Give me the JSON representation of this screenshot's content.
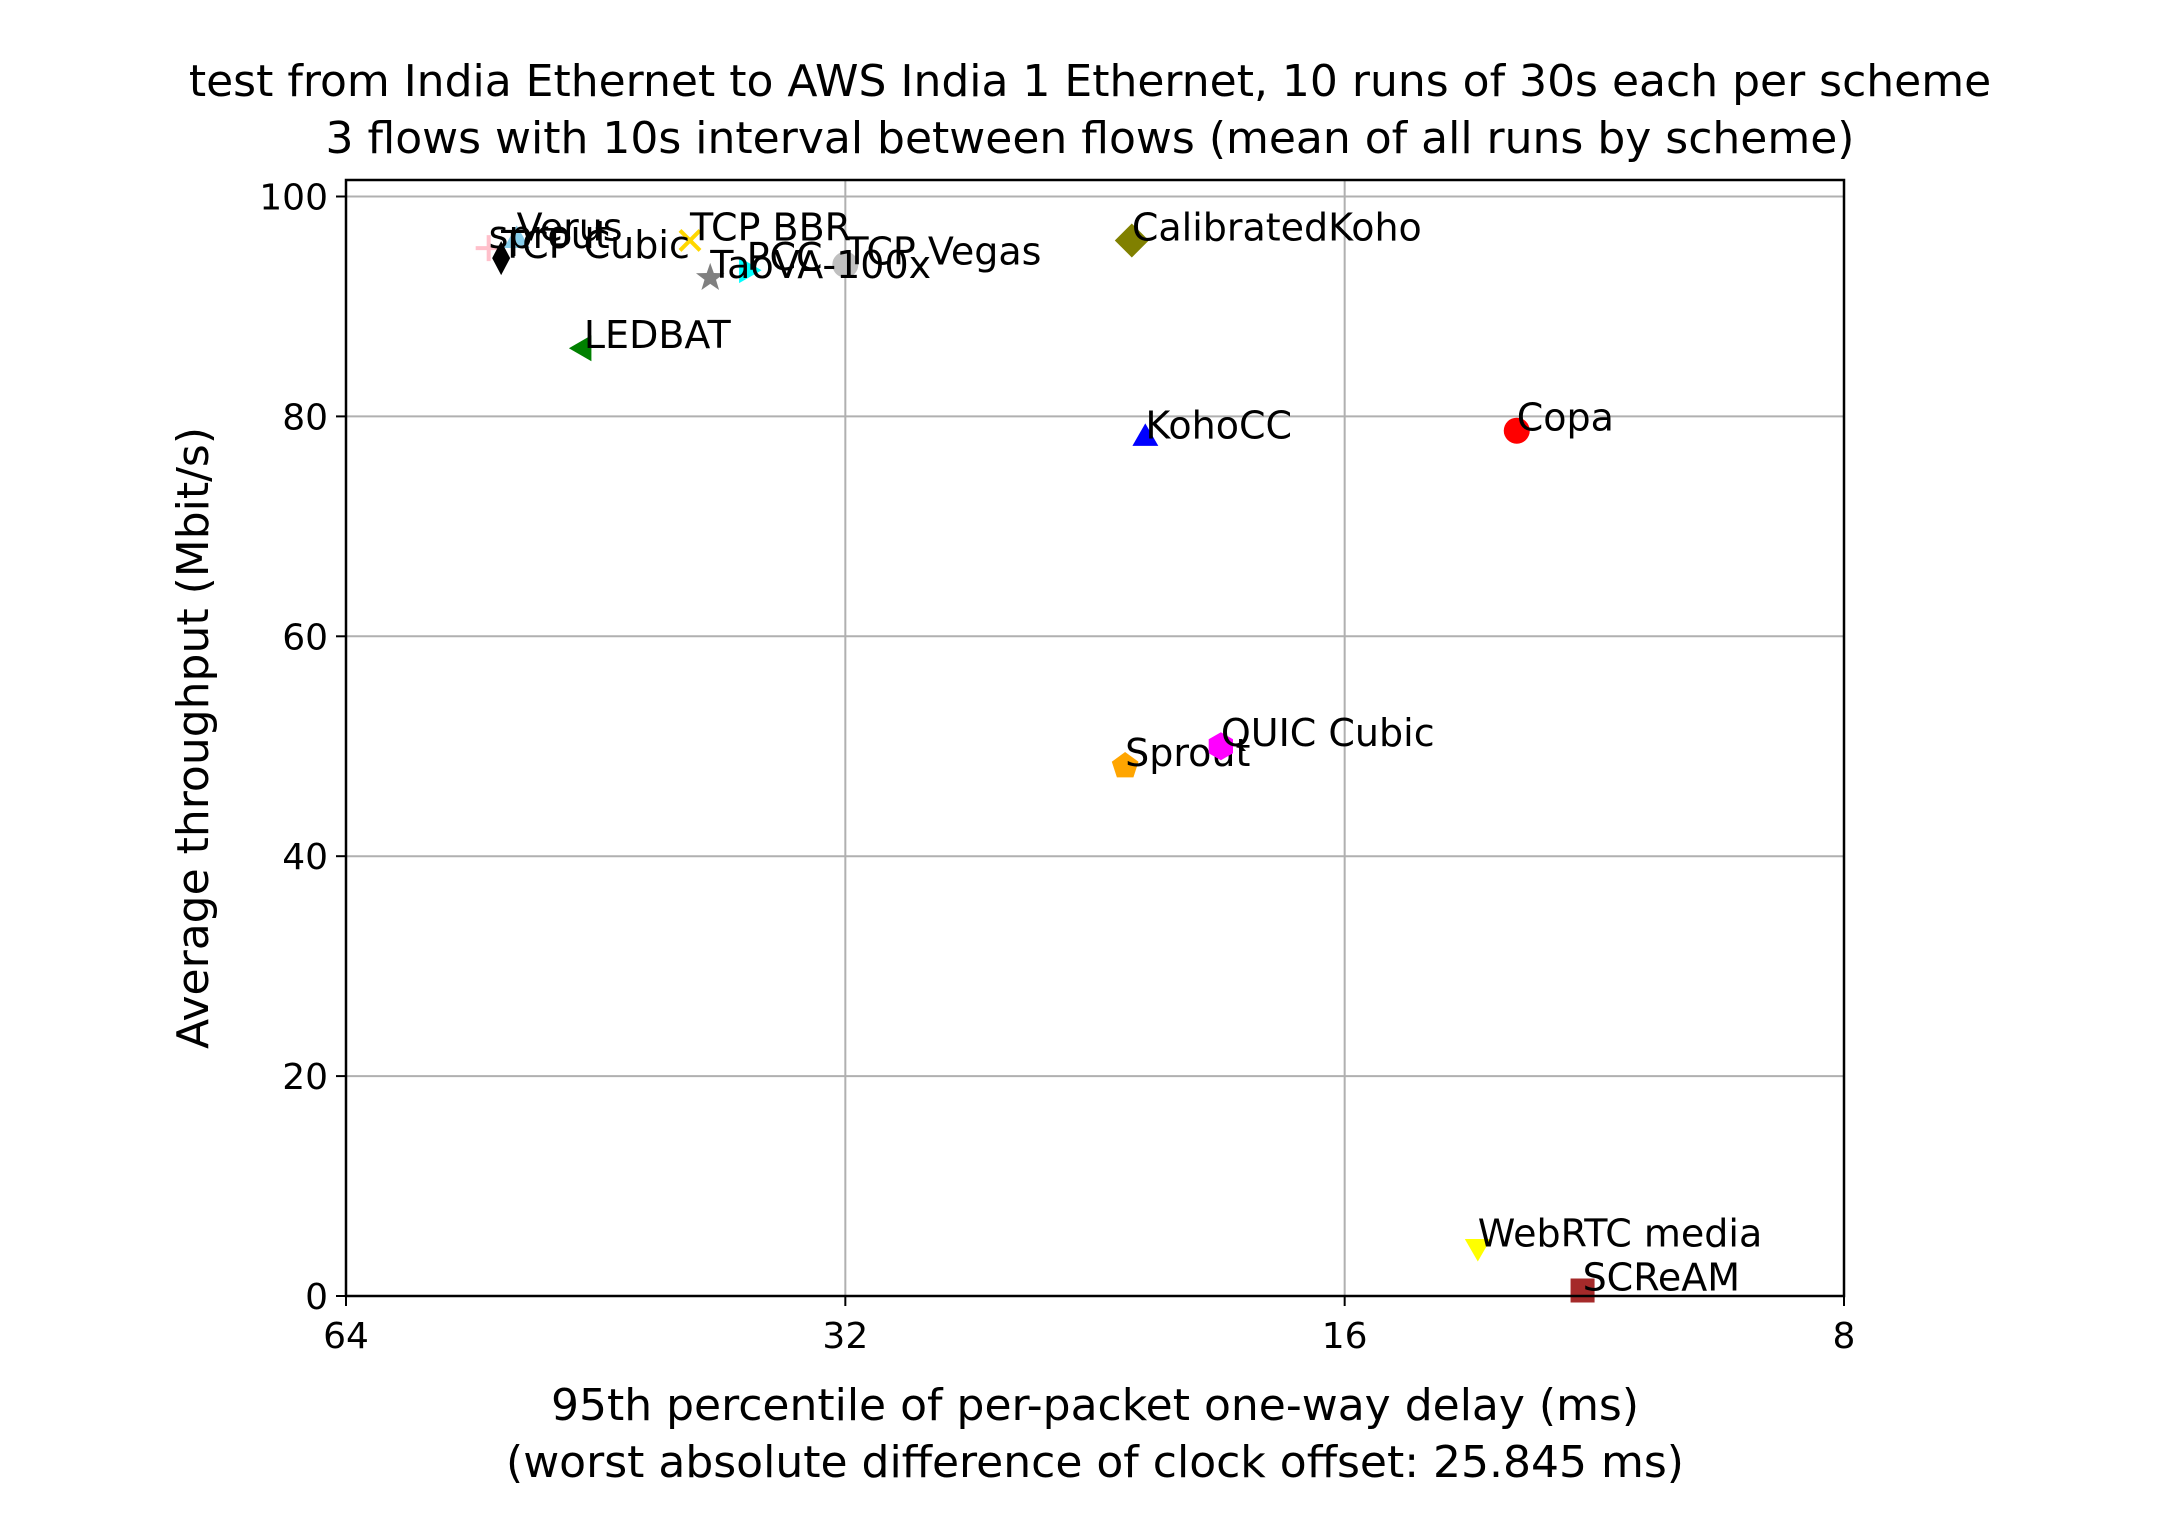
{
  "chart_data": {
    "type": "scatter",
    "title": "test from India Ethernet to AWS India 1 Ethernet, 10 runs of 30s each per scheme",
    "subtitle": "3 flows with 10s interval between flows (mean of all runs by scheme)",
    "xlabel": "95th percentile of per-packet one-way delay (ms)",
    "xlabel2": "(worst absolute difference of clock offset: 25.845 ms)",
    "ylabel": "Average throughput (Mbit/s)",
    "xscale": "log2",
    "x_inverted": true,
    "xlim": [
      64,
      8
    ],
    "ylim": [
      0,
      101.5
    ],
    "grid": true,
    "xticks": [
      64,
      32,
      16,
      8
    ],
    "xtick_labels": [
      "64",
      "32",
      "16",
      "8"
    ],
    "yticks": [
      0,
      20,
      40,
      60,
      80,
      100
    ],
    "ytick_labels": [
      "0",
      "20",
      "40",
      "60",
      "80",
      "100"
    ],
    "points": [
      {
        "name": "Sprout",
        "x": 21.7,
        "y": 48.2,
        "color": "#ffa500",
        "marker": "pentagon"
      },
      {
        "name": "QUIC Cubic",
        "x": 19.0,
        "y": 50.0,
        "color": "#ff00ff",
        "marker": "hexagon"
      },
      {
        "name": "CalibratedKoho",
        "x": 21.5,
        "y": 96.0,
        "color": "#808000",
        "marker": "diamond"
      },
      {
        "name": "KohoCC",
        "x": 21.1,
        "y": 78.0,
        "color": "#0000ff",
        "marker": "triangle-up"
      },
      {
        "name": "Copa",
        "x": 12.6,
        "y": 78.7,
        "color": "#ff0000",
        "marker": "circle"
      },
      {
        "name": "WebRTC media",
        "x": 13.3,
        "y": 4.5,
        "color": "#ffff00",
        "marker": "triangle-down"
      },
      {
        "name": "SCReAM",
        "x": 11.5,
        "y": 0.5,
        "color": "#a52a2a",
        "marker": "square"
      },
      {
        "name": "TCP Vegas",
        "x": 32.0,
        "y": 93.8,
        "color": "#c0c0c0",
        "marker": "circle"
      },
      {
        "name": "PCC",
        "x": 36.7,
        "y": 93.3,
        "color": "#00ffff",
        "marker": "triangle-right"
      },
      {
        "name": "TaoVA-100x",
        "x": 38.6,
        "y": 92.6,
        "color": "#808080",
        "marker": "star"
      },
      {
        "name": "TCP BBR",
        "x": 39.7,
        "y": 96.0,
        "color": "#ffd700",
        "marker": "x"
      },
      {
        "name": "Verus",
        "x": 50.5,
        "y": 96.0,
        "color": "#87ceeb",
        "marker": "triangle-up"
      },
      {
        "name": "sprout",
        "x": 52.5,
        "y": 95.3,
        "color": "#ffc0cb",
        "marker": "plus"
      },
      {
        "name": "TCP Cubic",
        "x": 51.6,
        "y": 94.4,
        "color": "#000000",
        "marker": "thin-diamond"
      },
      {
        "name": "LEDBAT",
        "x": 46.0,
        "y": 86.2,
        "color": "#008000",
        "marker": "triangle-left"
      }
    ]
  }
}
